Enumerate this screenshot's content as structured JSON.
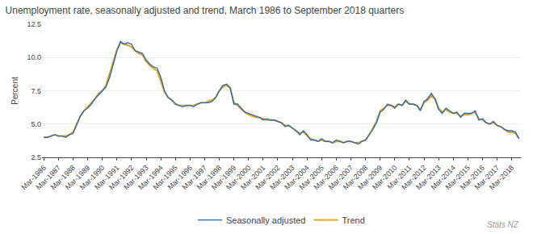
{
  "chart_data": {
    "type": "line",
    "title": "Unemployment rate, seasonally adjusted and trend, March 1986 to September 2018 quarters",
    "ylabel": "Percent",
    "categories": [
      "Mar-1986",
      null,
      null,
      null,
      "Mar-1987",
      null,
      null,
      null,
      "Mar-1988",
      null,
      null,
      null,
      "Mar-1989",
      null,
      null,
      null,
      "Mar-1990",
      null,
      null,
      null,
      "Mar-1991",
      null,
      null,
      null,
      "Mar-1992",
      null,
      null,
      null,
      "Mar-1993",
      null,
      null,
      null,
      "Mar-1994",
      null,
      null,
      null,
      "Mar-1995",
      null,
      null,
      null,
      "Mar-1996",
      null,
      null,
      null,
      "Mar-1997",
      null,
      null,
      null,
      "Mar-1998",
      null,
      null,
      null,
      "Mar-1999",
      null,
      null,
      null,
      "Mar-2000",
      null,
      null,
      null,
      "Mar-2001",
      null,
      null,
      null,
      "Mar-2002",
      null,
      null,
      null,
      "Mar-2003",
      null,
      null,
      null,
      "Mar-2004",
      null,
      null,
      null,
      "Mar-2005",
      null,
      null,
      null,
      "Mar-2006",
      null,
      null,
      null,
      "Mar-2007",
      null,
      null,
      null,
      "Mar-2008",
      null,
      null,
      null,
      "Mar-2009",
      null,
      null,
      null,
      "Mar-2010",
      null,
      null,
      null,
      "Mar-2011",
      null,
      null,
      null,
      "Mar-2012",
      null,
      null,
      null,
      "Mar-2013",
      null,
      null,
      null,
      "Mar-2014",
      null,
      null,
      null,
      "Mar-2015",
      null,
      null,
      null,
      "Mar-2016",
      null,
      null,
      null,
      "Mar-2017",
      null,
      null,
      null,
      "Mar-2018",
      null,
      null
    ],
    "series": [
      {
        "name": "Seasonally adjusted",
        "color": "#2b6db5",
        "values": [
          4.0,
          4.0,
          4.1,
          4.2,
          4.1,
          4.1,
          4.0,
          4.2,
          4.3,
          5.0,
          5.6,
          6.0,
          6.2,
          6.5,
          6.9,
          7.2,
          7.5,
          7.8,
          8.5,
          9.5,
          10.5,
          11.2,
          11.0,
          11.1,
          11.0,
          10.5,
          10.4,
          10.3,
          9.8,
          9.5,
          9.3,
          9.2,
          8.5,
          7.5,
          7.0,
          6.8,
          6.5,
          6.4,
          6.3,
          6.4,
          6.4,
          6.3,
          6.5,
          6.6,
          6.6,
          6.6,
          6.7,
          7.0,
          7.5,
          7.9,
          8.0,
          7.7,
          6.5,
          6.5,
          6.2,
          5.9,
          5.8,
          5.7,
          5.6,
          5.5,
          5.3,
          5.4,
          5.3,
          5.3,
          5.2,
          5.1,
          4.8,
          4.9,
          4.7,
          4.5,
          4.2,
          4.5,
          4.2,
          3.8,
          3.8,
          3.7,
          3.9,
          3.7,
          3.7,
          3.6,
          3.8,
          3.7,
          3.6,
          3.7,
          3.7,
          3.6,
          3.5,
          3.7,
          3.8,
          4.2,
          4.6,
          5.1,
          5.9,
          6.1,
          6.5,
          6.4,
          6.2,
          6.5,
          6.4,
          6.8,
          6.5,
          6.5,
          6.4,
          6.0,
          6.7,
          6.9,
          7.3,
          6.9,
          6.1,
          5.8,
          6.2,
          6.0,
          5.8,
          5.9,
          5.5,
          5.8,
          5.8,
          5.8,
          6.0,
          5.3,
          5.4,
          5.1,
          5.0,
          5.2,
          4.9,
          4.8,
          4.6,
          4.5,
          4.5,
          4.4,
          3.9
        ]
      },
      {
        "name": "Trend",
        "color": "#e8a020",
        "values": [
          4.0,
          4.0,
          4.1,
          4.2,
          4.1,
          4.1,
          4.1,
          4.2,
          4.4,
          5.0,
          5.6,
          6.0,
          6.3,
          6.6,
          6.9,
          7.3,
          7.5,
          7.9,
          8.8,
          9.7,
          10.6,
          11.1,
          11.0,
          10.9,
          10.8,
          10.5,
          10.3,
          10.2,
          9.7,
          9.4,
          9.2,
          9.0,
          8.2,
          7.4,
          7.0,
          6.8,
          6.5,
          6.4,
          6.4,
          6.4,
          6.4,
          6.4,
          6.5,
          6.6,
          6.6,
          6.7,
          6.8,
          7.0,
          7.5,
          7.8,
          7.9,
          7.7,
          6.6,
          6.4,
          6.1,
          5.9,
          5.7,
          5.6,
          5.5,
          5.5,
          5.4,
          5.3,
          5.3,
          5.3,
          5.2,
          5.1,
          4.9,
          4.9,
          4.7,
          4.5,
          4.3,
          4.4,
          4.1,
          3.9,
          3.8,
          3.7,
          3.8,
          3.7,
          3.7,
          3.6,
          3.7,
          3.7,
          3.6,
          3.7,
          3.7,
          3.6,
          3.6,
          3.7,
          3.8,
          4.2,
          4.7,
          5.2,
          6.0,
          6.2,
          6.4,
          6.4,
          6.3,
          6.5,
          6.4,
          6.7,
          6.5,
          6.5,
          6.4,
          6.1,
          6.6,
          6.8,
          7.1,
          6.9,
          6.2,
          5.9,
          6.1,
          5.9,
          5.8,
          5.8,
          5.6,
          5.7,
          5.7,
          5.8,
          5.9,
          5.4,
          5.3,
          5.1,
          5.0,
          5.1,
          4.9,
          4.8,
          4.6,
          4.4,
          4.4,
          4.3,
          3.9
        ]
      }
    ],
    "ylim": [
      2.5,
      12.5
    ],
    "yticks": [
      2.5,
      {
        "value": 5,
        "label": "5.0"
      },
      7.5,
      {
        "value": 10,
        "label": "10.0"
      },
      12.5
    ],
    "grid": true,
    "legend": "bottom",
    "annotations": [
      "Stats NZ"
    ]
  }
}
